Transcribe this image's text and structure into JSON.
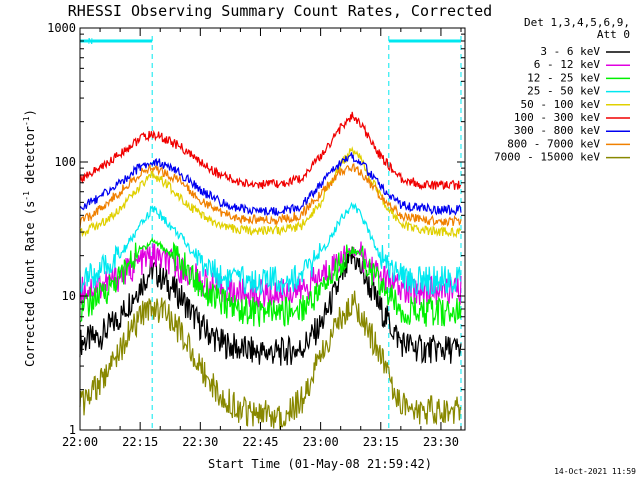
{
  "chart_data": {
    "type": "line",
    "title": "RHESSI Observing Summary Count Rates, Corrected",
    "xlabel": "Start Time (01-May-08 21:59:42)",
    "ylabel_main": "Corrected Count Rate (s",
    "ylabel_sup1": "-1",
    "ylabel_mid": " detector",
    "ylabel_sup2": "-1",
    "ylabel_end": ")",
    "yscale": "log",
    "ylim": [
      1,
      1000
    ],
    "xlim": [
      "22:00",
      "23:36"
    ],
    "xticks": [
      "22:00",
      "22:15",
      "22:30",
      "22:45",
      "23:00",
      "23:15",
      "23:30"
    ],
    "yticks": [
      "1",
      "10",
      "100",
      "1000"
    ],
    "legend_header": [
      "Det 1,3,4,5,6,9,",
      "Att 0"
    ],
    "legend_position": "right",
    "timestamp": "14-Oct-2021 11:59",
    "night_marker": "N",
    "night_intervals": [
      [
        "22:00",
        "22:18"
      ],
      [
        "23:17",
        "23:35"
      ]
    ],
    "series": [
      {
        "name": "3 - 6 keV",
        "color": "#000000",
        "x": [
          "22:00",
          "22:05",
          "22:10",
          "22:15",
          "22:18",
          "22:20",
          "22:25",
          "22:30",
          "22:35",
          "22:40",
          "22:45",
          "22:50",
          "22:55",
          "23:00",
          "23:05",
          "23:08",
          "23:10",
          "23:15",
          "23:20",
          "23:25",
          "23:30",
          "23:35"
        ],
        "y": [
          4.5,
          5,
          7,
          12,
          16,
          14,
          10,
          6,
          4.5,
          4,
          3.8,
          3.8,
          4,
          6,
          13,
          20,
          16,
          8,
          4.5,
          4,
          4,
          4
        ]
      },
      {
        "name": "6 - 12 keV",
        "color": "#e000e0",
        "x": [
          "22:00",
          "22:05",
          "22:10",
          "22:15",
          "22:18",
          "22:20",
          "22:25",
          "22:30",
          "22:35",
          "22:40",
          "22:45",
          "22:50",
          "22:55",
          "23:00",
          "23:05",
          "23:08",
          "23:10",
          "23:15",
          "23:20",
          "23:25",
          "23:30",
          "23:35"
        ],
        "y": [
          11,
          12,
          14,
          18,
          20,
          19,
          16,
          13,
          11,
          10.5,
          10.5,
          10.5,
          11,
          14,
          19,
          22,
          20,
          14,
          11,
          11,
          11,
          11
        ]
      },
      {
        "name": "12 - 25 keV",
        "color": "#00f000",
        "x": [
          "22:00",
          "22:05",
          "22:10",
          "22:15",
          "22:18",
          "22:20",
          "22:25",
          "22:30",
          "22:35",
          "22:40",
          "22:45",
          "22:50",
          "22:55",
          "23:00",
          "23:05",
          "23:08",
          "23:10",
          "23:15",
          "23:20",
          "23:25",
          "23:30",
          "23:35"
        ],
        "y": [
          8,
          10,
          14,
          22,
          26,
          24,
          18,
          12,
          9,
          8,
          7.5,
          7.5,
          8,
          11,
          18,
          22,
          20,
          12,
          8,
          7.5,
          7.5,
          7.5
        ]
      },
      {
        "name": "25 - 50 keV",
        "color": "#00e8f0",
        "x": [
          "22:00",
          "22:05",
          "22:10",
          "22:15",
          "22:18",
          "22:20",
          "22:25",
          "22:30",
          "22:35",
          "22:40",
          "22:45",
          "22:50",
          "22:55",
          "23:00",
          "23:05",
          "23:08",
          "23:10",
          "23:15",
          "23:20",
          "23:25",
          "23:30",
          "23:35"
        ],
        "y": [
          13,
          15,
          20,
          33,
          45,
          40,
          28,
          18,
          14,
          13,
          13,
          13,
          14,
          20,
          38,
          48,
          40,
          20,
          14,
          13,
          13,
          13
        ]
      },
      {
        "name": "50 - 100 keV",
        "color": "#e0d000",
        "x": [
          "22:00",
          "22:05",
          "22:10",
          "22:15",
          "22:18",
          "22:20",
          "22:25",
          "22:30",
          "22:35",
          "22:40",
          "22:45",
          "22:50",
          "22:55",
          "23:00",
          "23:05",
          "23:08",
          "23:10",
          "23:15",
          "23:20",
          "23:25",
          "23:30",
          "23:35"
        ],
        "y": [
          30,
          34,
          45,
          65,
          80,
          75,
          55,
          40,
          33,
          31,
          31,
          31,
          33,
          50,
          95,
          125,
          105,
          55,
          34,
          31,
          30,
          30
        ]
      },
      {
        "name": "100 - 300 keV",
        "color": "#f00000",
        "x": [
          "22:00",
          "22:05",
          "22:10",
          "22:15",
          "22:18",
          "22:20",
          "22:25",
          "22:30",
          "22:35",
          "22:40",
          "22:45",
          "22:50",
          "22:55",
          "23:00",
          "23:05",
          "23:08",
          "23:10",
          "23:15",
          "23:20",
          "23:25",
          "23:30",
          "23:35"
        ],
        "y": [
          75,
          90,
          115,
          150,
          160,
          155,
          130,
          100,
          80,
          70,
          68,
          68,
          75,
          110,
          180,
          220,
          190,
          110,
          75,
          68,
          67,
          67
        ]
      },
      {
        "name": "300 - 800 keV",
        "color": "#0000f0",
        "x": [
          "22:00",
          "22:05",
          "22:10",
          "22:15",
          "22:18",
          "22:20",
          "22:25",
          "22:30",
          "22:35",
          "22:40",
          "22:45",
          "22:50",
          "22:55",
          "23:00",
          "23:05",
          "23:08",
          "23:10",
          "23:15",
          "23:20",
          "23:25",
          "23:30",
          "23:35"
        ],
        "y": [
          45,
          55,
          70,
          92,
          100,
          98,
          82,
          62,
          50,
          45,
          43,
          43,
          46,
          68,
          100,
          110,
          100,
          65,
          48,
          45,
          44,
          44
        ]
      },
      {
        "name": "800 - 7000 keV",
        "color": "#f08000",
        "x": [
          "22:00",
          "22:05",
          "22:10",
          "22:15",
          "22:18",
          "22:20",
          "22:25",
          "22:30",
          "22:35",
          "22:40",
          "22:45",
          "22:50",
          "22:55",
          "23:00",
          "23:05",
          "23:08",
          "23:10",
          "23:15",
          "23:20",
          "23:25",
          "23:30",
          "23:35"
        ],
        "y": [
          35,
          45,
          60,
          82,
          90,
          87,
          72,
          52,
          42,
          38,
          37,
          37,
          40,
          58,
          85,
          92,
          85,
          55,
          40,
          37,
          36,
          36
        ]
      },
      {
        "name": "7000 - 15000 keV",
        "color": "#888800",
        "x": [
          "22:00",
          "22:05",
          "22:10",
          "22:15",
          "22:18",
          "22:20",
          "22:25",
          "22:30",
          "22:35",
          "22:40",
          "22:45",
          "22:50",
          "22:55",
          "23:00",
          "23:05",
          "23:08",
          "23:10",
          "23:15",
          "23:20",
          "23:25",
          "23:30",
          "23:35"
        ],
        "y": [
          1.5,
          2.2,
          4,
          7,
          8.5,
          8,
          5.5,
          3,
          1.8,
          1.4,
          1.3,
          1.3,
          1.6,
          3.5,
          7,
          9,
          7.5,
          3.5,
          1.6,
          1.4,
          1.4,
          1.4
        ]
      }
    ]
  }
}
